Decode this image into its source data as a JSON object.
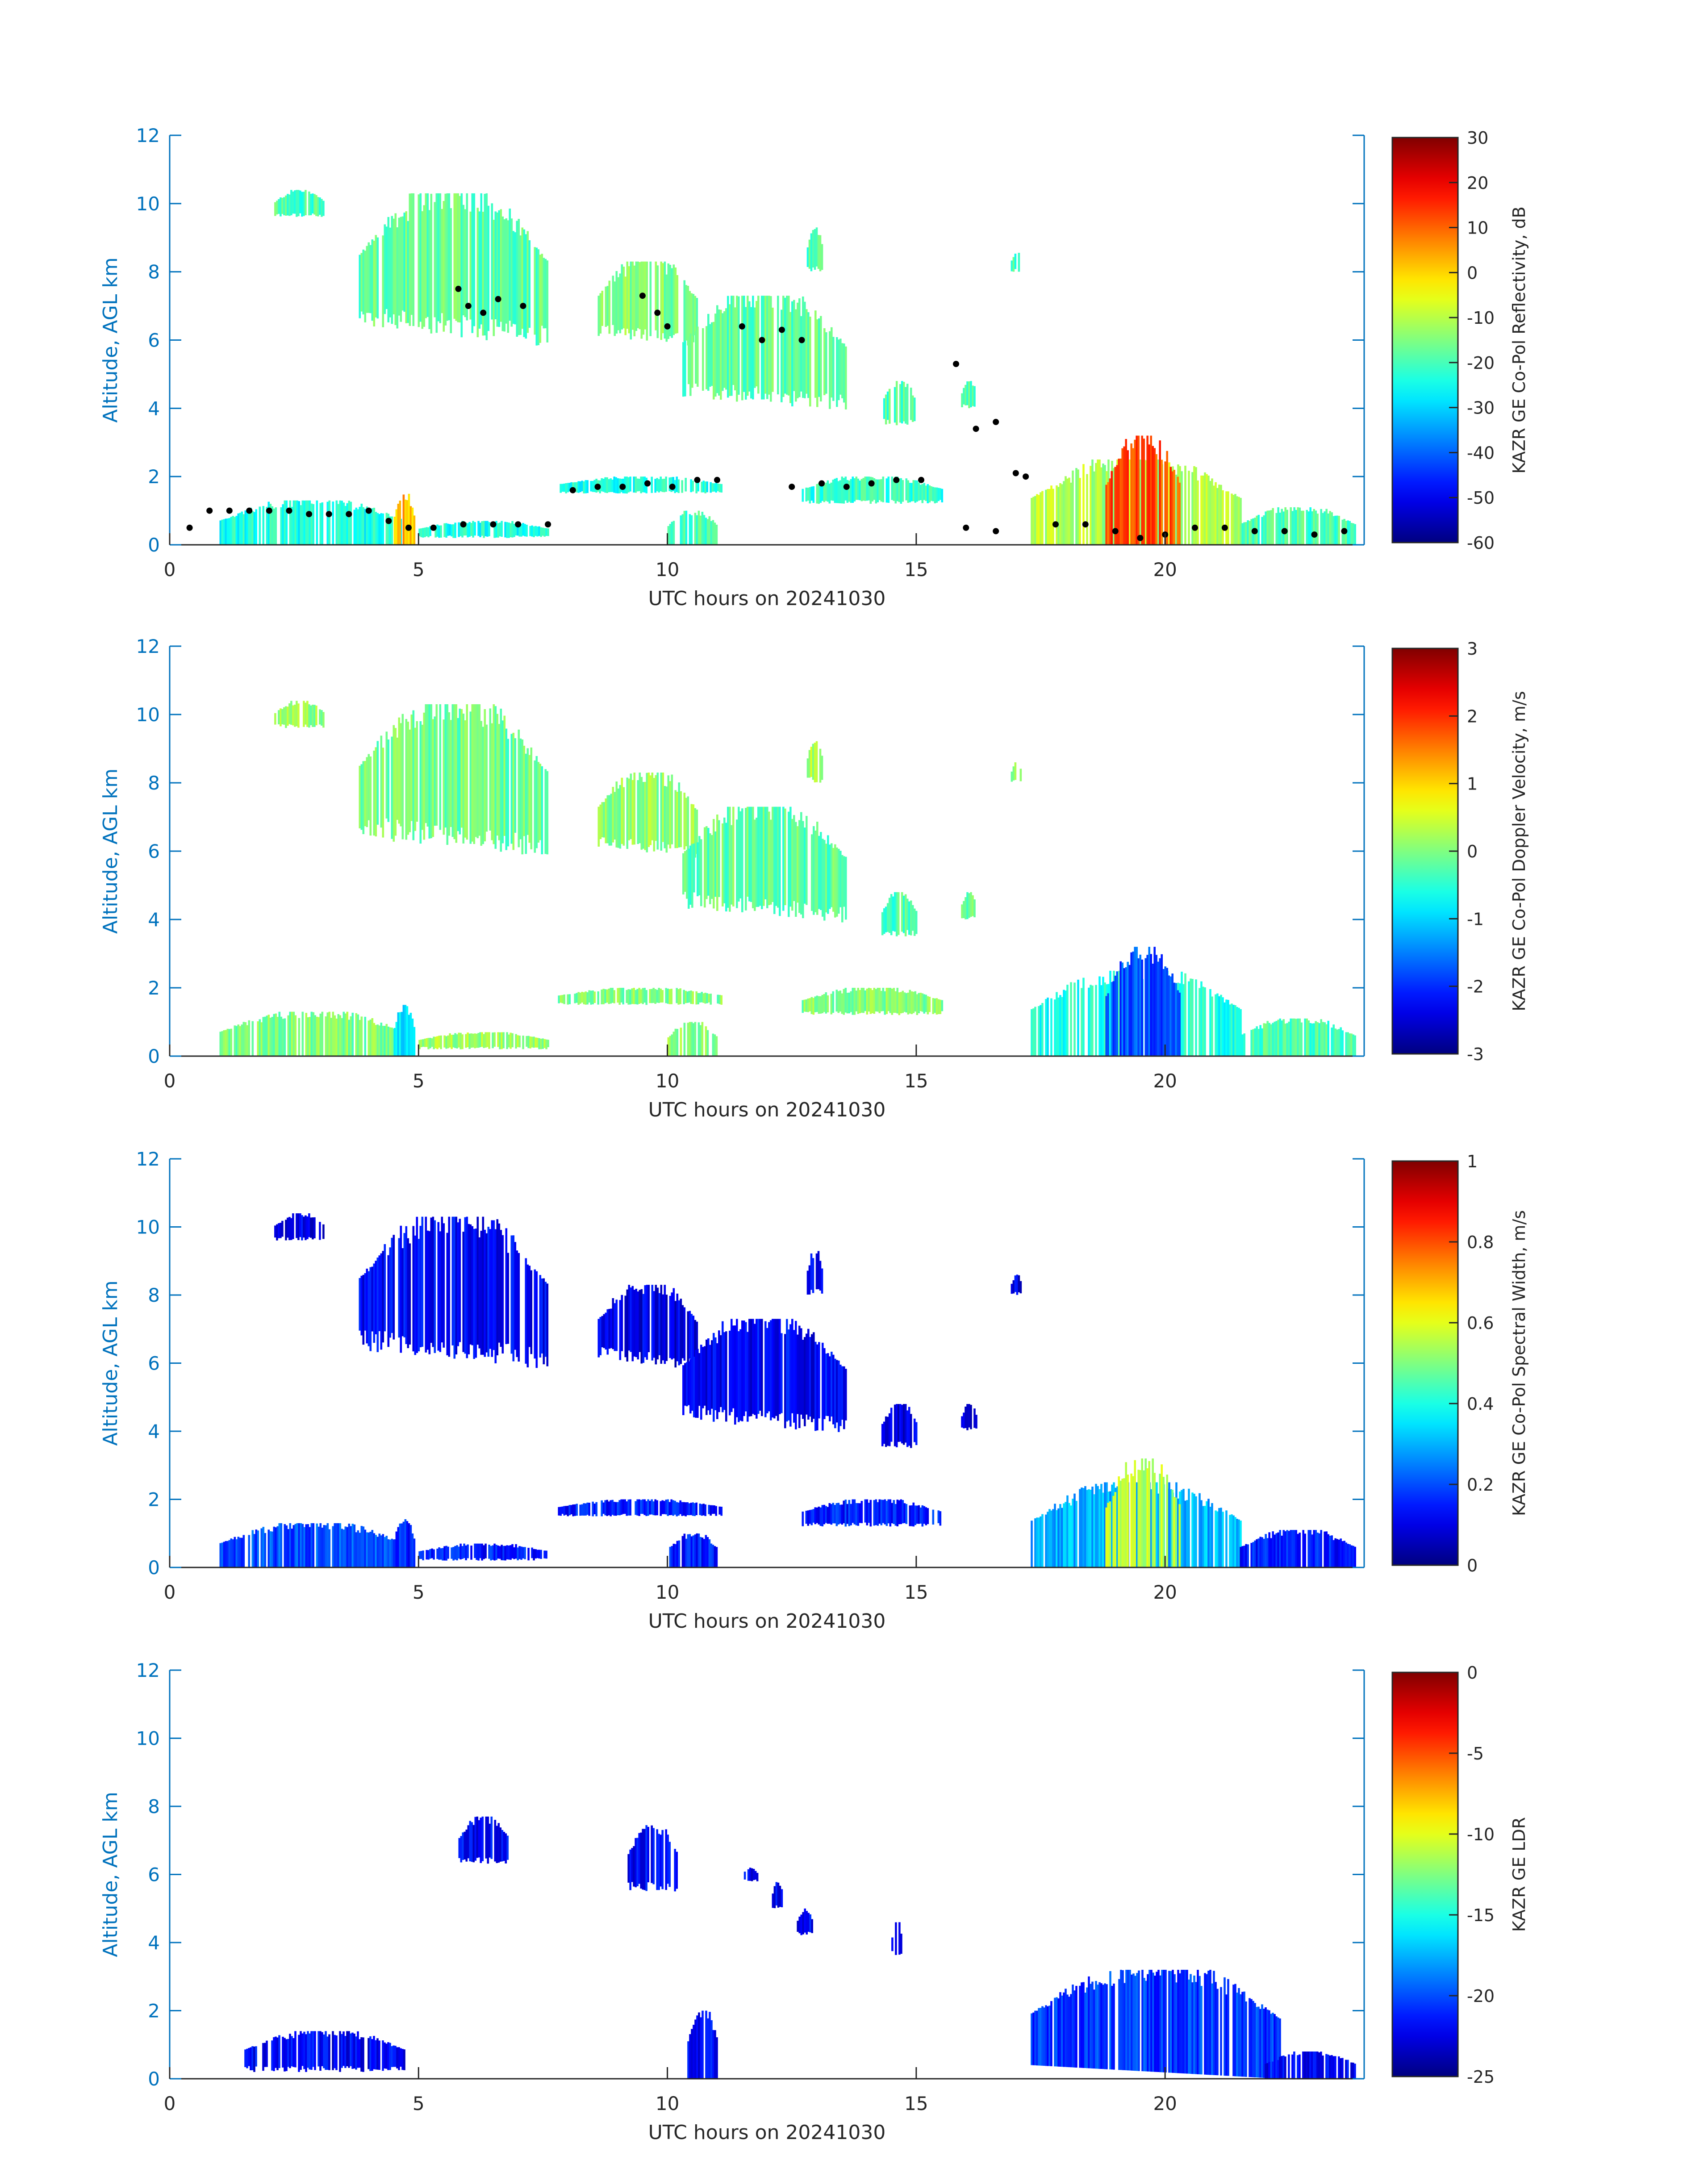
{
  "chart_data": [
    {
      "type": "heatmap",
      "title": "",
      "xlabel": "UTC hours on 20241030",
      "ylabel": "Altitude, AGL km",
      "xlim": [
        0,
        24
      ],
      "ylim": [
        0,
        12
      ],
      "xticks": [
        "0",
        "5",
        "10",
        "15",
        "20"
      ],
      "yticks": [
        "0",
        "2",
        "4",
        "6",
        "8",
        "10",
        "12"
      ],
      "colorbar": {
        "label": "KAZR GE Co-Pol Reflectivity, dB",
        "range": [
          -60,
          30
        ],
        "ticks": [
          "-60",
          "-50",
          "-40",
          "-30",
          "-20",
          "-10",
          "0",
          "10",
          "20",
          "30"
        ]
      },
      "echoes": [
        {
          "x0": 2.1,
          "x1": 3.1,
          "y0": 9.6,
          "y1": 10.4,
          "v": 0.45
        },
        {
          "x0": 3.8,
          "x1": 7.6,
          "y0": 5.8,
          "y1": 10.3,
          "v": 0.47
        },
        {
          "x0": 8.6,
          "x1": 10.6,
          "y0": 5.8,
          "y1": 8.3,
          "v": 0.5
        },
        {
          "x0": 10.3,
          "x1": 13.6,
          "y0": 3.9,
          "y1": 7.3,
          "v": 0.47
        },
        {
          "x0": 12.8,
          "x1": 13.1,
          "y0": 8.0,
          "y1": 9.3,
          "v": 0.45
        },
        {
          "x0": 14.3,
          "x1": 15.0,
          "y0": 3.5,
          "y1": 4.8,
          "v": 0.45
        },
        {
          "x0": 15.9,
          "x1": 16.2,
          "y0": 4.0,
          "y1": 4.8,
          "v": 0.45
        },
        {
          "x0": 16.9,
          "x1": 17.1,
          "y0": 8.0,
          "y1": 8.6,
          "v": 0.45
        },
        {
          "x0": 1.0,
          "x1": 4.7,
          "y0": 0.0,
          "y1": 1.3,
          "v": 0.4
        },
        {
          "x0": 4.5,
          "x1": 4.9,
          "y0": 0.0,
          "y1": 1.5,
          "v": 0.7
        },
        {
          "x0": 5.0,
          "x1": 7.6,
          "y0": 0.2,
          "y1": 0.7,
          "v": 0.4
        },
        {
          "x0": 7.8,
          "x1": 11.1,
          "y0": 1.5,
          "y1": 2.0,
          "v": 0.4
        },
        {
          "x0": 10.0,
          "x1": 11.0,
          "y0": 0.0,
          "y1": 1.0,
          "v": 0.45
        },
        {
          "x0": 12.7,
          "x1": 15.5,
          "y0": 1.2,
          "y1": 2.0,
          "v": 0.42
        },
        {
          "x0": 17.3,
          "x1": 21.5,
          "y0": 0.0,
          "y1": 2.5,
          "v": 0.55
        },
        {
          "x0": 18.8,
          "x1": 20.3,
          "y0": 0.0,
          "y1": 3.2,
          "v": 0.8
        },
        {
          "x0": 21.5,
          "x1": 23.8,
          "y0": 0.0,
          "y1": 1.1,
          "v": 0.45
        }
      ],
      "overlay_points": {
        "name": "cloud base / top markers (black dots)",
        "x": [
          0.4,
          0.8,
          1.2,
          1.6,
          2.0,
          2.4,
          2.8,
          3.2,
          3.6,
          4.0,
          4.4,
          4.8,
          5.3,
          5.9,
          6.5,
          7.0,
          7.6,
          8.1,
          8.6,
          9.1,
          9.6,
          10.1,
          10.6,
          11.0,
          12.5,
          13.1,
          13.6,
          14.1,
          14.6,
          15.1,
          16.0,
          16.6,
          17.2,
          17.8,
          18.4,
          19.0,
          19.5,
          20.0,
          20.6,
          21.2,
          21.8,
          22.4,
          23.0,
          23.6,
          5.8,
          6.0,
          6.3,
          6.6,
          7.1,
          9.5,
          9.8,
          10.0,
          11.5,
          11.9,
          12.3,
          12.7,
          15.8,
          16.2,
          16.6,
          17.0
        ],
        "y": [
          0.5,
          1.0,
          1.0,
          1.0,
          1.0,
          1.0,
          0.9,
          0.9,
          0.9,
          1.0,
          0.7,
          0.5,
          0.5,
          0.6,
          0.6,
          0.6,
          0.6,
          1.6,
          1.7,
          1.7,
          1.8,
          1.7,
          1.9,
          1.9,
          1.7,
          1.8,
          1.7,
          1.8,
          1.9,
          1.9,
          0.5,
          0.4,
          2.0,
          0.6,
          0.6,
          0.4,
          0.2,
          0.3,
          0.5,
          0.5,
          0.4,
          0.4,
          0.3,
          0.4,
          7.5,
          7.0,
          6.8,
          7.2,
          7.0,
          7.3,
          6.8,
          6.4,
          6.4,
          6.0,
          6.3,
          6.0,
          5.3,
          3.4,
          3.6,
          2.1
        ]
      }
    },
    {
      "type": "heatmap",
      "title": "",
      "xlabel": "UTC hours on 20241030",
      "ylabel": "Altitude, AGL km",
      "xlim": [
        0,
        24
      ],
      "ylim": [
        0,
        12
      ],
      "xticks": [
        "0",
        "5",
        "10",
        "15",
        "20"
      ],
      "yticks": [
        "0",
        "2",
        "4",
        "6",
        "8",
        "10",
        "12"
      ],
      "colorbar": {
        "label": "KAZR GE Co-Pol Doppler Velocity, m/s",
        "range": [
          -3,
          3
        ],
        "ticks": [
          "-3",
          "-2",
          "-1",
          "0",
          "1",
          "2",
          "3"
        ]
      },
      "echoes": [
        {
          "x0": 2.1,
          "x1": 3.1,
          "y0": 9.6,
          "y1": 10.4,
          "v": 0.52
        },
        {
          "x0": 3.8,
          "x1": 7.6,
          "y0": 5.8,
          "y1": 10.3,
          "v": 0.48
        },
        {
          "x0": 8.6,
          "x1": 10.6,
          "y0": 5.8,
          "y1": 8.3,
          "v": 0.52
        },
        {
          "x0": 10.3,
          "x1": 13.6,
          "y0": 3.9,
          "y1": 7.3,
          "v": 0.47
        },
        {
          "x0": 12.8,
          "x1": 13.1,
          "y0": 8.0,
          "y1": 9.3,
          "v": 0.55
        },
        {
          "x0": 14.3,
          "x1": 15.0,
          "y0": 3.5,
          "y1": 4.8,
          "v": 0.45
        },
        {
          "x0": 15.9,
          "x1": 16.2,
          "y0": 4.0,
          "y1": 4.8,
          "v": 0.47
        },
        {
          "x0": 16.9,
          "x1": 17.1,
          "y0": 8.0,
          "y1": 8.6,
          "v": 0.5
        },
        {
          "x0": 1.0,
          "x1": 4.7,
          "y0": 0.0,
          "y1": 1.3,
          "v": 0.5
        },
        {
          "x0": 4.5,
          "x1": 4.9,
          "y0": 0.0,
          "y1": 1.5,
          "v": 0.35
        },
        {
          "x0": 5.0,
          "x1": 7.6,
          "y0": 0.2,
          "y1": 0.7,
          "v": 0.53
        },
        {
          "x0": 7.8,
          "x1": 11.1,
          "y0": 1.5,
          "y1": 2.0,
          "v": 0.5
        },
        {
          "x0": 10.0,
          "x1": 11.0,
          "y0": 0.0,
          "y1": 1.0,
          "v": 0.52
        },
        {
          "x0": 12.7,
          "x1": 15.5,
          "y0": 1.2,
          "y1": 2.0,
          "v": 0.5
        },
        {
          "x0": 17.3,
          "x1": 21.5,
          "y0": 0.0,
          "y1": 2.5,
          "v": 0.4
        },
        {
          "x0": 18.8,
          "x1": 20.3,
          "y0": 0.0,
          "y1": 3.2,
          "v": 0.2
        },
        {
          "x0": 21.5,
          "x1": 23.8,
          "y0": 0.0,
          "y1": 1.1,
          "v": 0.45
        }
      ]
    },
    {
      "type": "heatmap",
      "title": "",
      "xlabel": "UTC hours on 20241030",
      "ylabel": "Altitude, AGL km",
      "xlim": [
        0,
        24
      ],
      "ylim": [
        0,
        12
      ],
      "xticks": [
        "0",
        "5",
        "10",
        "15",
        "20"
      ],
      "yticks": [
        "0",
        "2",
        "4",
        "6",
        "8",
        "10",
        "12"
      ],
      "colorbar": {
        "label": "KAZR GE Co-Pol Spectral Width, m/s",
        "range": [
          0,
          1
        ],
        "ticks": [
          "0",
          "0.2",
          "0.4",
          "0.6",
          "0.8",
          "1"
        ]
      },
      "echoes": [
        {
          "x0": 2.1,
          "x1": 3.1,
          "y0": 9.6,
          "y1": 10.4,
          "v": 0.1
        },
        {
          "x0": 3.8,
          "x1": 7.6,
          "y0": 5.8,
          "y1": 10.3,
          "v": 0.12
        },
        {
          "x0": 8.6,
          "x1": 10.6,
          "y0": 5.8,
          "y1": 8.3,
          "v": 0.1
        },
        {
          "x0": 10.3,
          "x1": 13.6,
          "y0": 3.9,
          "y1": 7.3,
          "v": 0.12
        },
        {
          "x0": 12.8,
          "x1": 13.1,
          "y0": 8.0,
          "y1": 9.3,
          "v": 0.1
        },
        {
          "x0": 14.3,
          "x1": 15.0,
          "y0": 3.5,
          "y1": 4.8,
          "v": 0.1
        },
        {
          "x0": 15.9,
          "x1": 16.2,
          "y0": 4.0,
          "y1": 4.8,
          "v": 0.1
        },
        {
          "x0": 16.9,
          "x1": 17.1,
          "y0": 8.0,
          "y1": 8.6,
          "v": 0.1
        },
        {
          "x0": 1.0,
          "x1": 4.7,
          "y0": 0.0,
          "y1": 1.3,
          "v": 0.2
        },
        {
          "x0": 4.5,
          "x1": 4.9,
          "y0": 0.0,
          "y1": 1.5,
          "v": 0.15
        },
        {
          "x0": 5.0,
          "x1": 7.6,
          "y0": 0.2,
          "y1": 0.7,
          "v": 0.15
        },
        {
          "x0": 7.8,
          "x1": 11.1,
          "y0": 1.5,
          "y1": 2.0,
          "v": 0.15
        },
        {
          "x0": 10.0,
          "x1": 11.0,
          "y0": 0.0,
          "y1": 1.0,
          "v": 0.15
        },
        {
          "x0": 12.7,
          "x1": 15.5,
          "y0": 1.2,
          "y1": 2.0,
          "v": 0.15
        },
        {
          "x0": 17.3,
          "x1": 21.5,
          "y0": 0.0,
          "y1": 2.5,
          "v": 0.3
        },
        {
          "x0": 18.8,
          "x1": 20.3,
          "y0": 0.0,
          "y1": 3.2,
          "v": 0.55
        },
        {
          "x0": 21.5,
          "x1": 23.8,
          "y0": 0.0,
          "y1": 1.1,
          "v": 0.15
        }
      ]
    },
    {
      "type": "heatmap",
      "title": "",
      "xlabel": "UTC hours on 20241030",
      "ylabel": "Altitude, AGL km",
      "xlim": [
        0,
        24
      ],
      "ylim": [
        0,
        12
      ],
      "xticks": [
        "0",
        "5",
        "10",
        "15",
        "20"
      ],
      "yticks": [
        "0",
        "2",
        "4",
        "6",
        "8",
        "10",
        "12"
      ],
      "colorbar": {
        "label": "KAZR GE LDR",
        "range": [
          -25,
          0
        ],
        "ticks": [
          "-25",
          "-20",
          "-15",
          "-10",
          "-5",
          "0"
        ]
      },
      "echoes": [
        {
          "x0": 5.8,
          "x1": 6.8,
          "y0": 6.3,
          "y1": 7.7,
          "v": 0.12
        },
        {
          "x0": 9.2,
          "x1": 10.2,
          "y0": 5.5,
          "y1": 7.5,
          "v": 0.12
        },
        {
          "x0": 11.5,
          "x1": 11.8,
          "y0": 5.8,
          "y1": 6.2,
          "v": 0.12
        },
        {
          "x0": 12.1,
          "x1": 12.3,
          "y0": 5.0,
          "y1": 5.8,
          "v": 0.12
        },
        {
          "x0": 12.6,
          "x1": 12.9,
          "y0": 4.2,
          "y1": 5.0,
          "v": 0.12
        },
        {
          "x0": 14.5,
          "x1": 14.7,
          "y0": 3.6,
          "y1": 4.6,
          "v": 0.12
        },
        {
          "x0": 1.5,
          "x1": 4.7,
          "y0": 0.2,
          "y1": 1.4,
          "v": 0.12
        },
        {
          "x0": 10.4,
          "x1": 11.0,
          "y0": 0.0,
          "y1": 2.0,
          "v": 0.12
        },
        {
          "x0": 17.3,
          "x1": 22.3,
          "y0": 0.0,
          "y1": 3.2,
          "v": 0.18
        },
        {
          "x0": 22.0,
          "x1": 23.8,
          "y0": 0.0,
          "y1": 0.8,
          "v": 0.12
        }
      ]
    }
  ]
}
